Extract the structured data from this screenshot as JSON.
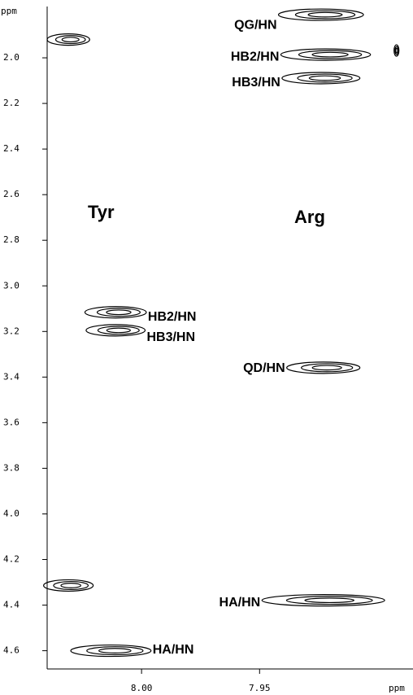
{
  "chart_data": {
    "type": "contour",
    "y_label": "ppm",
    "x_label": "ppm",
    "xlim": [
      8.04,
      7.885
    ],
    "ylim": [
      1.775,
      4.68
    ],
    "xticks": [
      {
        "value": 8.0,
        "label": "8.00"
      },
      7.95
    ],
    "yticks": [
      {
        "value": 2.0,
        "label": "2.0"
      },
      2.2,
      2.4,
      2.6,
      2.8,
      {
        "value": 3.0,
        "label": "3.0"
      },
      3.2,
      3.4,
      3.6,
      3.8,
      {
        "value": 4.0,
        "label": "4.0"
      },
      4.2,
      4.4,
      4.6
    ],
    "annotations": [
      "Tyr",
      "Arg"
    ],
    "peaks": [
      {
        "label": "QG/HN",
        "x": 7.924,
        "y": 1.811,
        "width": 0.036
      },
      {
        "label": "HB2/HN",
        "x": 7.922,
        "y": 1.986,
        "width": 0.038
      },
      {
        "label": "HB3/HN",
        "x": 7.924,
        "y": 2.089,
        "width": 0.033
      },
      {
        "label": "QD/HN",
        "x": 7.923,
        "y": 3.359,
        "width": 0.031
      },
      {
        "label": "HA/HN",
        "x": 7.923,
        "y": 4.379,
        "width": 0.052
      },
      {
        "label": "HB2/HN",
        "x": 8.011,
        "y": 3.116,
        "width": 0.026
      },
      {
        "label": "HB3/HN",
        "x": 8.011,
        "y": 3.195,
        "width": 0.025
      },
      {
        "label": "HA/HN",
        "x": 8.013,
        "y": 4.6,
        "width": 0.034
      },
      {
        "x": 8.031,
        "y": 1.92,
        "width": 0.018
      },
      {
        "x": 8.031,
        "y": 4.314,
        "width": 0.021
      },
      {
        "x": 7.892,
        "y": 1.968,
        "width": 0.002
      }
    ]
  }
}
